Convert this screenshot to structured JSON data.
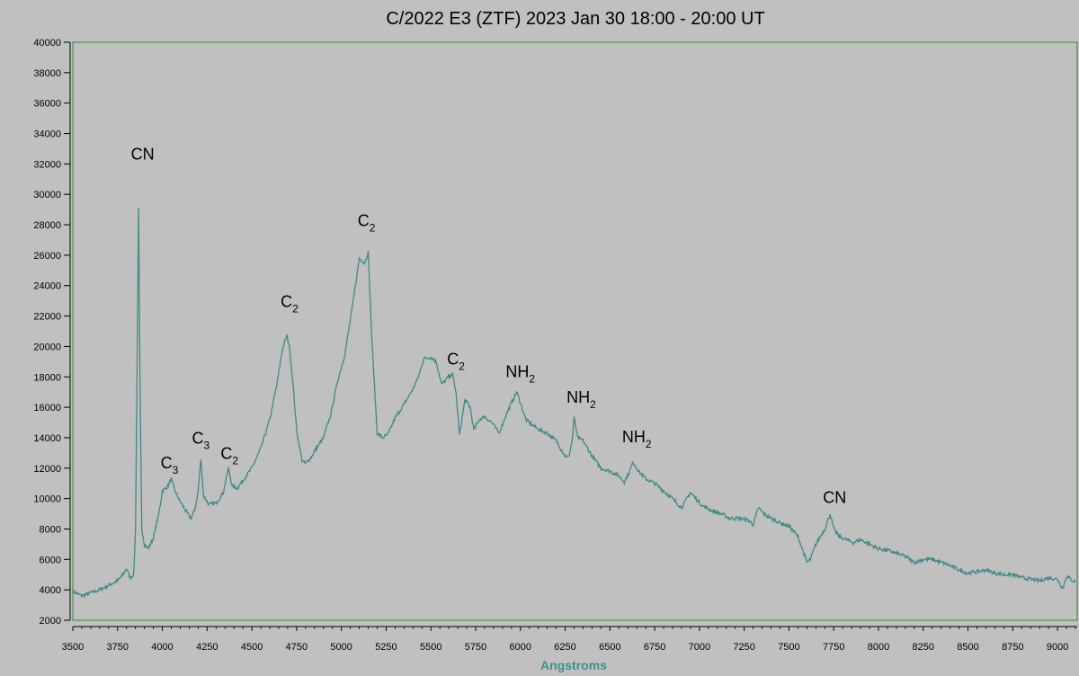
{
  "chart_data": {
    "type": "line",
    "title": "C/2022 E3 (ZTF)   2023 Jan 30  18:00 - 20:00 UT",
    "xlabel": "Angstroms",
    "ylabel": "",
    "xlim": [
      3500,
      9110
    ],
    "ylim": [
      2000,
      40000
    ],
    "xticks": [
      3500,
      3750,
      4000,
      4250,
      4500,
      4750,
      5000,
      5250,
      5500,
      5750,
      6000,
      6250,
      6500,
      6750,
      7000,
      7250,
      7500,
      7750,
      8000,
      8250,
      8500,
      8750,
      9000
    ],
    "yticks": [
      2000,
      4000,
      6000,
      8000,
      10000,
      12000,
      14000,
      16000,
      18000,
      20000,
      22000,
      24000,
      26000,
      28000,
      30000,
      32000,
      34000,
      36000,
      38000,
      40000
    ],
    "grid": false,
    "colors": {
      "line": "#3e8a86",
      "frame": "#2e8b2e",
      "background": "#c0c0c0"
    },
    "series": [
      {
        "name": "",
        "points": [
          [
            3500,
            3900
          ],
          [
            3550,
            3600
          ],
          [
            3600,
            3800
          ],
          [
            3650,
            4000
          ],
          [
            3700,
            4300
          ],
          [
            3750,
            4600
          ],
          [
            3780,
            5000
          ],
          [
            3800,
            5400
          ],
          [
            3820,
            4800
          ],
          [
            3840,
            5000
          ],
          [
            3850,
            8000
          ],
          [
            3860,
            20000
          ],
          [
            3867,
            29000
          ],
          [
            3875,
            18000
          ],
          [
            3885,
            8000
          ],
          [
            3900,
            7000
          ],
          [
            3920,
            6700
          ],
          [
            3950,
            7400
          ],
          [
            3980,
            9000
          ],
          [
            4000,
            10500
          ],
          [
            4030,
            10800
          ],
          [
            4050,
            11300
          ],
          [
            4070,
            10500
          ],
          [
            4100,
            9800
          ],
          [
            4130,
            9200
          ],
          [
            4160,
            8700
          ],
          [
            4180,
            9200
          ],
          [
            4200,
            10500
          ],
          [
            4215,
            12600
          ],
          [
            4230,
            10200
          ],
          [
            4260,
            9600
          ],
          [
            4300,
            9700
          ],
          [
            4340,
            10400
          ],
          [
            4370,
            12000
          ],
          [
            4390,
            10800
          ],
          [
            4420,
            10700
          ],
          [
            4450,
            11200
          ],
          [
            4500,
            12000
          ],
          [
            4550,
            13300
          ],
          [
            4600,
            15200
          ],
          [
            4640,
            17500
          ],
          [
            4670,
            19800
          ],
          [
            4695,
            20700
          ],
          [
            4710,
            20000
          ],
          [
            4730,
            17500
          ],
          [
            4750,
            14500
          ],
          [
            4780,
            12500
          ],
          [
            4800,
            12300
          ],
          [
            4830,
            12700
          ],
          [
            4860,
            13300
          ],
          [
            4900,
            14000
          ],
          [
            4940,
            15500
          ],
          [
            4980,
            17800
          ],
          [
            5020,
            19500
          ],
          [
            5060,
            22500
          ],
          [
            5100,
            25800
          ],
          [
            5130,
            25500
          ],
          [
            5150,
            26200
          ],
          [
            5170,
            20500
          ],
          [
            5200,
            14300
          ],
          [
            5230,
            14000
          ],
          [
            5260,
            14200
          ],
          [
            5300,
            15300
          ],
          [
            5350,
            16200
          ],
          [
            5400,
            17200
          ],
          [
            5430,
            18000
          ],
          [
            5460,
            19200
          ],
          [
            5500,
            19300
          ],
          [
            5530,
            19000
          ],
          [
            5560,
            17500
          ],
          [
            5590,
            17900
          ],
          [
            5620,
            18200
          ],
          [
            5640,
            17000
          ],
          [
            5660,
            14200
          ],
          [
            5690,
            16500
          ],
          [
            5720,
            16000
          ],
          [
            5740,
            14500
          ],
          [
            5770,
            15200
          ],
          [
            5800,
            15400
          ],
          [
            5840,
            15000
          ],
          [
            5880,
            14300
          ],
          [
            5920,
            15500
          ],
          [
            5950,
            16300
          ],
          [
            5980,
            17000
          ],
          [
            6000,
            16300
          ],
          [
            6030,
            15200
          ],
          [
            6070,
            14800
          ],
          [
            6110,
            14500
          ],
          [
            6150,
            14300
          ],
          [
            6200,
            13800
          ],
          [
            6250,
            12800
          ],
          [
            6270,
            12700
          ],
          [
            6290,
            13900
          ],
          [
            6300,
            15300
          ],
          [
            6320,
            14000
          ],
          [
            6350,
            13800
          ],
          [
            6400,
            12800
          ],
          [
            6450,
            12000
          ],
          [
            6500,
            11800
          ],
          [
            6550,
            11500
          ],
          [
            6580,
            11100
          ],
          [
            6610,
            11800
          ],
          [
            6630,
            12400
          ],
          [
            6660,
            11800
          ],
          [
            6700,
            11300
          ],
          [
            6750,
            11000
          ],
          [
            6800,
            10500
          ],
          [
            6850,
            10000
          ],
          [
            6900,
            9400
          ],
          [
            6950,
            10400
          ],
          [
            6980,
            10000
          ],
          [
            7020,
            9500
          ],
          [
            7070,
            9200
          ],
          [
            7120,
            9000
          ],
          [
            7170,
            8700
          ],
          [
            7220,
            8700
          ],
          [
            7270,
            8600
          ],
          [
            7300,
            8300
          ],
          [
            7330,
            9400
          ],
          [
            7360,
            9000
          ],
          [
            7400,
            8700
          ],
          [
            7450,
            8400
          ],
          [
            7500,
            8200
          ],
          [
            7550,
            7500
          ],
          [
            7580,
            6500
          ],
          [
            7600,
            5800
          ],
          [
            7620,
            6000
          ],
          [
            7650,
            7000
          ],
          [
            7700,
            8000
          ],
          [
            7730,
            9000
          ],
          [
            7750,
            8000
          ],
          [
            7780,
            7500
          ],
          [
            7820,
            7300
          ],
          [
            7860,
            7100
          ],
          [
            7900,
            7300
          ],
          [
            7950,
            7000
          ],
          [
            8000,
            6700
          ],
          [
            8050,
            6600
          ],
          [
            8100,
            6400
          ],
          [
            8150,
            6200
          ],
          [
            8200,
            5800
          ],
          [
            8250,
            6000
          ],
          [
            8300,
            6000
          ],
          [
            8350,
            5800
          ],
          [
            8400,
            5600
          ],
          [
            8450,
            5300
          ],
          [
            8500,
            5100
          ],
          [
            8550,
            5200
          ],
          [
            8600,
            5300
          ],
          [
            8650,
            5100
          ],
          [
            8700,
            5000
          ],
          [
            8750,
            5000
          ],
          [
            8800,
            4800
          ],
          [
            8850,
            4700
          ],
          [
            8900,
            4600
          ],
          [
            8950,
            4800
          ],
          [
            9000,
            4700
          ],
          [
            9030,
            4100
          ],
          [
            9050,
            4900
          ],
          [
            9100,
            4500
          ]
        ]
      }
    ],
    "annotations": [
      {
        "text": "CN",
        "sub": "",
        "x": 3890,
        "y": 32300
      },
      {
        "text": "C",
        "sub": "3",
        "x": 4040,
        "y": 12000
      },
      {
        "text": "C",
        "sub": "3",
        "x": 4215,
        "y": 13600
      },
      {
        "text": "C",
        "sub": "2",
        "x": 4375,
        "y": 12600
      },
      {
        "text": "C",
        "sub": "2",
        "x": 4710,
        "y": 22600
      },
      {
        "text": "C",
        "sub": "2",
        "x": 5140,
        "y": 27900
      },
      {
        "text": "C",
        "sub": "2",
        "x": 5640,
        "y": 18800
      },
      {
        "text": "NH",
        "sub": "2",
        "x": 6000,
        "y": 18000
      },
      {
        "text": "NH",
        "sub": "2",
        "x": 6340,
        "y": 16300
      },
      {
        "text": "NH",
        "sub": "2",
        "x": 6650,
        "y": 13700
      },
      {
        "text": "CN",
        "sub": "",
        "x": 7755,
        "y": 9700
      }
    ]
  }
}
